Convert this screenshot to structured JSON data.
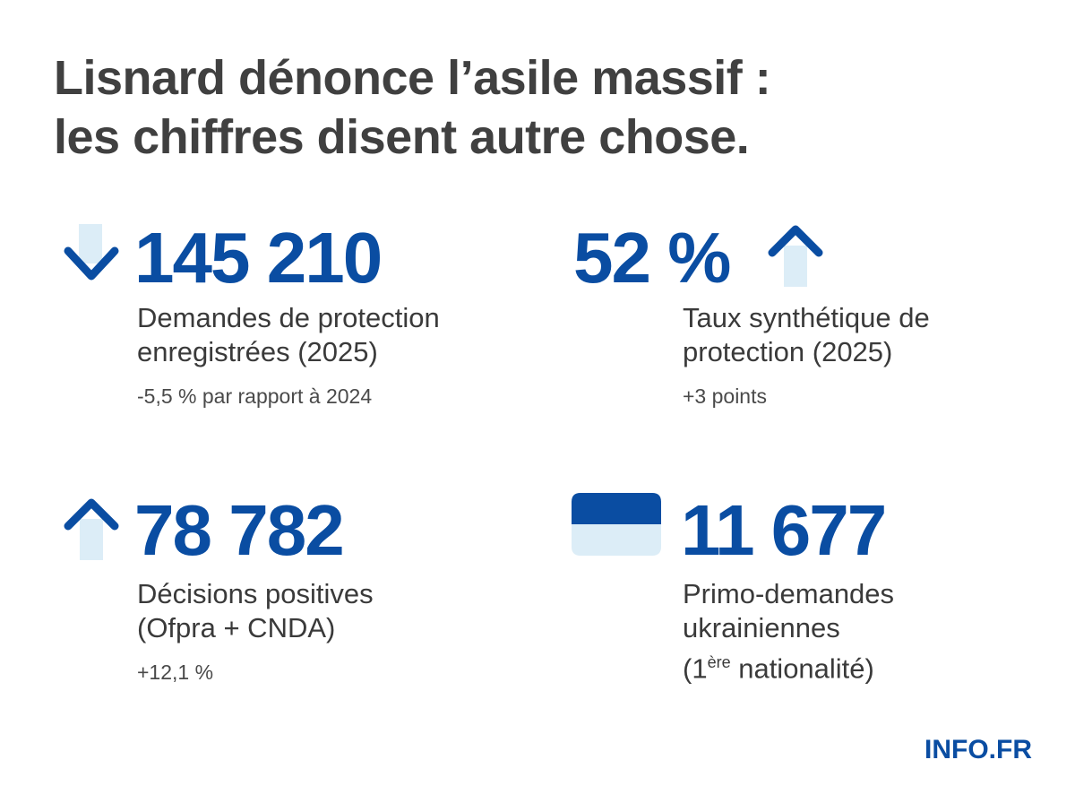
{
  "title": {
    "line1": "Lisnard dénonce l’asile massif :",
    "line2": "les chiffres disent autre chose."
  },
  "colors": {
    "accent": "#0a4da2",
    "light": "#dcedf7",
    "text": "#404040"
  },
  "stats": [
    {
      "value": "145 210",
      "label_line1": "Demandes de protection",
      "label_line2": "enregistrées (2025)",
      "note": "-5,5 % par rapport à 2024",
      "icon": "arrow-down-icon"
    },
    {
      "value": "52 %",
      "label_line1": "Taux synthétique de",
      "label_line2": "protection (2025)",
      "note": "+3 points",
      "icon": "arrow-up-icon"
    },
    {
      "value": "78 782",
      "label_line1": "Décisions positives",
      "label_line2": "(Ofpra + CNDA)",
      "note": "+12,1 %",
      "icon": "arrow-up-icon"
    },
    {
      "value": "11 677",
      "label_line1": "Primo-demandes",
      "label_line2": "ukrainiennes",
      "label_line3_prefix": "(1",
      "label_line3_sup": "ère",
      "label_line3_suffix": " nationalité)",
      "icon": "ukraine-flag-icon"
    }
  ],
  "brand": "INFO.FR"
}
